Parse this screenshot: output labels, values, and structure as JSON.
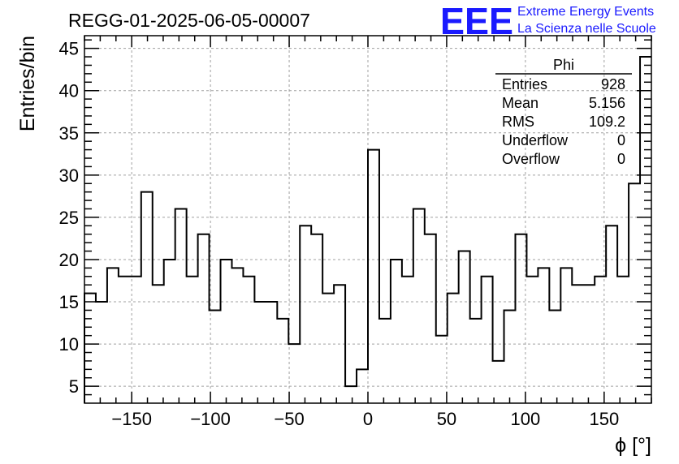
{
  "header": {
    "title": "REGG-01-2025-06-05-00007",
    "logo_text": "EEE",
    "logo_line1": "Extreme Energy Events",
    "logo_line2": "La Scienza nelle Scuole",
    "logo_color": "#1a1aff"
  },
  "stats_box": {
    "title": "Phi",
    "rows": [
      {
        "label": "Entries",
        "value": "928"
      },
      {
        "label": "Mean",
        "value": "5.156"
      },
      {
        "label": "RMS",
        "value": "109.2"
      },
      {
        "label": "Underflow",
        "value": "0"
      },
      {
        "label": "Overflow",
        "value": "0"
      }
    ]
  },
  "chart_data": {
    "type": "bar",
    "histogram": true,
    "xlabel": "ϕ [°]",
    "ylabel": "Entries/bin",
    "xlim": [
      -180,
      180
    ],
    "ylim": [
      3,
      46.5
    ],
    "bin_width": 7.2,
    "grid": true,
    "x_ticks": [
      -150,
      -100,
      -50,
      0,
      50,
      100,
      150
    ],
    "x_tick_labels": [
      "−150",
      "−100",
      "−50",
      "0",
      "50",
      "100",
      "150"
    ],
    "y_ticks": [
      5,
      10,
      15,
      20,
      25,
      30,
      35,
      40,
      45
    ],
    "y_tick_labels": [
      "5",
      "10",
      "15",
      "20",
      "25",
      "30",
      "35",
      "40",
      "45"
    ],
    "values": [
      16,
      15,
      19,
      18,
      18,
      28,
      17,
      20,
      26,
      18,
      23,
      14,
      20,
      19,
      18,
      15,
      15,
      13,
      10,
      24,
      23,
      16,
      17,
      5,
      7,
      33,
      13,
      20,
      18,
      26,
      23,
      11,
      16,
      21,
      13,
      18,
      8,
      14,
      23,
      18,
      19,
      14,
      19,
      17,
      17,
      18,
      24,
      18,
      29,
      44
    ],
    "line_color": "#000000"
  }
}
